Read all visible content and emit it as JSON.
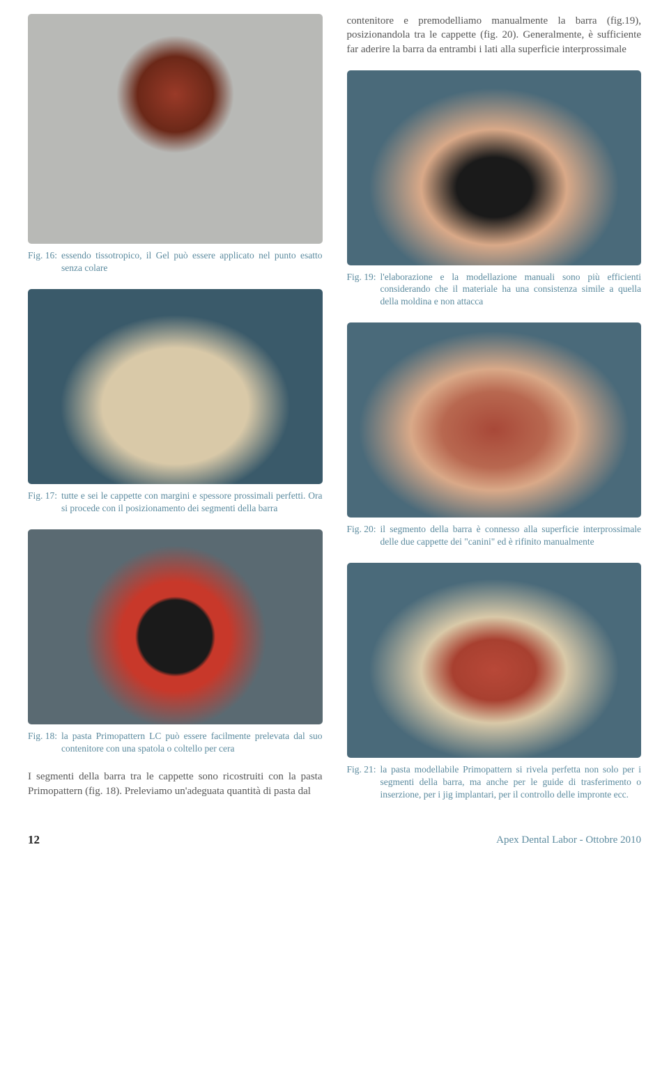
{
  "intro_paragraph": "contenitore e premodelliamo manualmente la barra (fig.19), posizionandola tra le cappette (fig. 20). Generalmente, è sufficiente far aderire la barra da entrambi i lati alla superficie interprossimale",
  "figures": {
    "fig16": {
      "label": "Fig. 16:",
      "text": "essendo tissotropico, il Gel può essere applicato nel punto esatto senza colare"
    },
    "fig17": {
      "label": "Fig. 17:",
      "text": "tutte e sei le cappette con margini e spessore prossimali perfetti. Ora si procede con il posizionamento dei segmenti della barra"
    },
    "fig18": {
      "label": "Fig. 18:",
      "text": "la pasta Primopattern LC può essere facilmente prelevata dal suo contenitore con una spatola o coltello per cera"
    },
    "fig19": {
      "label": "Fig. 19:",
      "text": "l'elaborazione e la modellazione manuali sono più efficienti considerando che il materiale ha una consistenza simile a quella della moldina e non attacca"
    },
    "fig20": {
      "label": "Fig. 20:",
      "text": "il segmento della barra è connesso alla superficie interprossimale delle due cappette dei \"canini\" ed è rifinito manualmente"
    },
    "fig21": {
      "label": "Fig. 21:",
      "text": "la pasta modellabile Primopattern si rivela perfetta non solo per i segmenti della barra, ma anche per le guide di trasferimento o inserzione, per i jig implantari, per il controllo delle impronte ecc."
    }
  },
  "body_paragraph": "I segmenti della barra tra le cappette sono ricostruiti con la pasta Primopattern (fig. 18). Preleviamo un'adeguata quantità di pasta dal",
  "footer": {
    "page_num": "12",
    "publication": "Apex Dental Labor - Ottobre 2010"
  },
  "colors": {
    "caption_color": "#5b8a9e",
    "body_color": "#555555",
    "background": "#ffffff"
  }
}
